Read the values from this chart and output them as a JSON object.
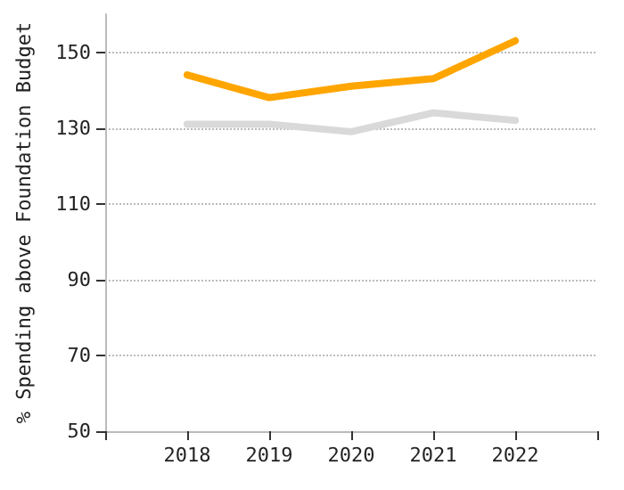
{
  "chart_data": {
    "type": "line",
    "ylabel": "% Spending above Foundation Budget",
    "x": [
      2018,
      2019,
      2020,
      2021,
      2022
    ],
    "series": [
      {
        "color": "#ffa500",
        "values": [
          144,
          138,
          141,
          143,
          153
        ]
      },
      {
        "color": "#d9d9d9",
        "values": [
          131,
          131,
          129,
          134,
          132
        ]
      }
    ],
    "xlim": [
      2017,
      2023
    ],
    "xticks": [
      {
        "value": 2017,
        "label": null
      },
      2018,
      2019,
      2020,
      2021,
      2022,
      {
        "value": 2023,
        "label": null
      }
    ],
    "ylim": [
      50,
      160
    ],
    "yticks": [
      50,
      70,
      90,
      110,
      130,
      150
    ],
    "grid": "y",
    "marker": "none",
    "line_style": "solid"
  }
}
